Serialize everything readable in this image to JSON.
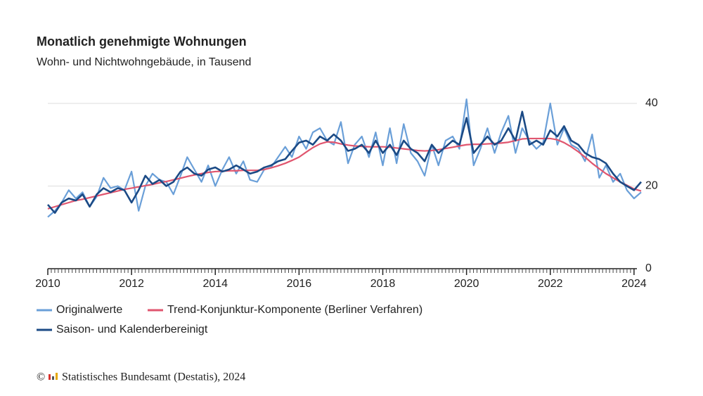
{
  "chart_data": {
    "type": "line",
    "title": "Monatlich genehmigte Wohnungen",
    "subtitle": "Wohn- und Nichtwohngebäude, in Tausend",
    "copyright": "©",
    "source": "Statistisches Bundesamt (Destatis), 2024",
    "x": [
      2010,
      2010.17,
      2010.33,
      2010.5,
      2010.67,
      2010.83,
      2011,
      2011.17,
      2011.33,
      2011.5,
      2011.67,
      2011.83,
      2012,
      2012.17,
      2012.33,
      2012.5,
      2012.67,
      2012.83,
      2013,
      2013.17,
      2013.33,
      2013.5,
      2013.67,
      2013.83,
      2014,
      2014.17,
      2014.33,
      2014.5,
      2014.67,
      2014.83,
      2015,
      2015.17,
      2015.33,
      2015.5,
      2015.67,
      2015.83,
      2016,
      2016.17,
      2016.33,
      2016.5,
      2016.67,
      2016.83,
      2017,
      2017.17,
      2017.33,
      2017.5,
      2017.67,
      2017.83,
      2018,
      2018.17,
      2018.33,
      2018.5,
      2018.67,
      2018.83,
      2019,
      2019.17,
      2019.33,
      2019.5,
      2019.67,
      2019.83,
      2020,
      2020.17,
      2020.33,
      2020.5,
      2020.67,
      2020.83,
      2021,
      2021.17,
      2021.33,
      2021.5,
      2021.67,
      2021.83,
      2022,
      2022.17,
      2022.33,
      2022.5,
      2022.67,
      2022.83,
      2023,
      2023.17,
      2023.33,
      2023.5,
      2023.67,
      2023.83,
      2024,
      2024.17
    ],
    "series": [
      {
        "name": "Originalwerte",
        "color": "#6a9fd8",
        "width": 2.2,
        "values": [
          12.5,
          14,
          16,
          19,
          17,
          18.5,
          15,
          17.5,
          22,
          19.5,
          20,
          19,
          23.5,
          14,
          20,
          23,
          21.5,
          21,
          18,
          22.5,
          27,
          24,
          21,
          25,
          20,
          24,
          27,
          23,
          26,
          21.5,
          21,
          24,
          24.5,
          27,
          29.5,
          27,
          32,
          29,
          33,
          34,
          31,
          30,
          35.5,
          25.5,
          30,
          32,
          27,
          33,
          25,
          34,
          25.5,
          35,
          28,
          26,
          22.5,
          30,
          25,
          31,
          32,
          29,
          41,
          25,
          29,
          34,
          28,
          33,
          37,
          28,
          34,
          31,
          29,
          30.5,
          40,
          30,
          34,
          30,
          29,
          26,
          32.5,
          22,
          25,
          21,
          23,
          19,
          17,
          18.5
        ]
      },
      {
        "name": "Trend-Konjunktur-Komponente (Berliner Verfahren)",
        "color": "#e0566f",
        "width": 2.2,
        "values": [
          14.5,
          15,
          15.5,
          16,
          16.5,
          16.8,
          17.2,
          17.6,
          18,
          18.4,
          18.8,
          19.2,
          19.5,
          19.8,
          20.1,
          20.4,
          20.8,
          21.1,
          21.5,
          21.9,
          22.3,
          22.7,
          23,
          23.3,
          23.5,
          23.6,
          23.7,
          23.7,
          23.8,
          23.8,
          23.8,
          24,
          24.4,
          24.9,
          25.5,
          26.2,
          27,
          28.2,
          29.3,
          30.2,
          30.7,
          30.6,
          30.2,
          29.9,
          29.7,
          29.6,
          29.5,
          29.5,
          29.5,
          29.4,
          29.2,
          29,
          28.8,
          28.6,
          28.5,
          28.6,
          28.8,
          29.1,
          29.4,
          29.7,
          30,
          30.1,
          30.1,
          30.2,
          30.3,
          30.4,
          30.6,
          31,
          31.4,
          31.5,
          31.5,
          31.5,
          31.5,
          31.2,
          30.5,
          29.5,
          28.3,
          27,
          25.5,
          24.2,
          23,
          22,
          21,
          20.2,
          19.3,
          18.8
        ]
      },
      {
        "name": "Saison- und Kalenderbereinigt",
        "color": "#1b4a85",
        "width": 2.6,
        "values": [
          15.5,
          13.5,
          16,
          17,
          16.5,
          18,
          15,
          18,
          19.5,
          18.5,
          19.5,
          19,
          16,
          19,
          22.5,
          20.5,
          21.5,
          20,
          21,
          23.5,
          24.5,
          23,
          22.5,
          24,
          24.5,
          23.5,
          24,
          25,
          24,
          23,
          23.5,
          24.5,
          25,
          26,
          26.5,
          28.5,
          30.5,
          31,
          30,
          32,
          31,
          32.5,
          31,
          28.5,
          29,
          30,
          28,
          31,
          28,
          30,
          27.5,
          31,
          29,
          28,
          26,
          30,
          28,
          29.5,
          31,
          30,
          36.5,
          28,
          30,
          32,
          30,
          31,
          34,
          31,
          38,
          30,
          31,
          30,
          33.5,
          32,
          34.5,
          31,
          30,
          28,
          27,
          26.5,
          25.5,
          23,
          21,
          20,
          19,
          21
        ]
      }
    ],
    "xlim": [
      2010,
      2024.17
    ],
    "xticks": [
      2010,
      2012,
      2014,
      2016,
      2018,
      2020,
      2022,
      2024
    ],
    "ylim": [
      0,
      40
    ],
    "yticks": [
      0,
      20,
      40
    ],
    "grid": true
  }
}
